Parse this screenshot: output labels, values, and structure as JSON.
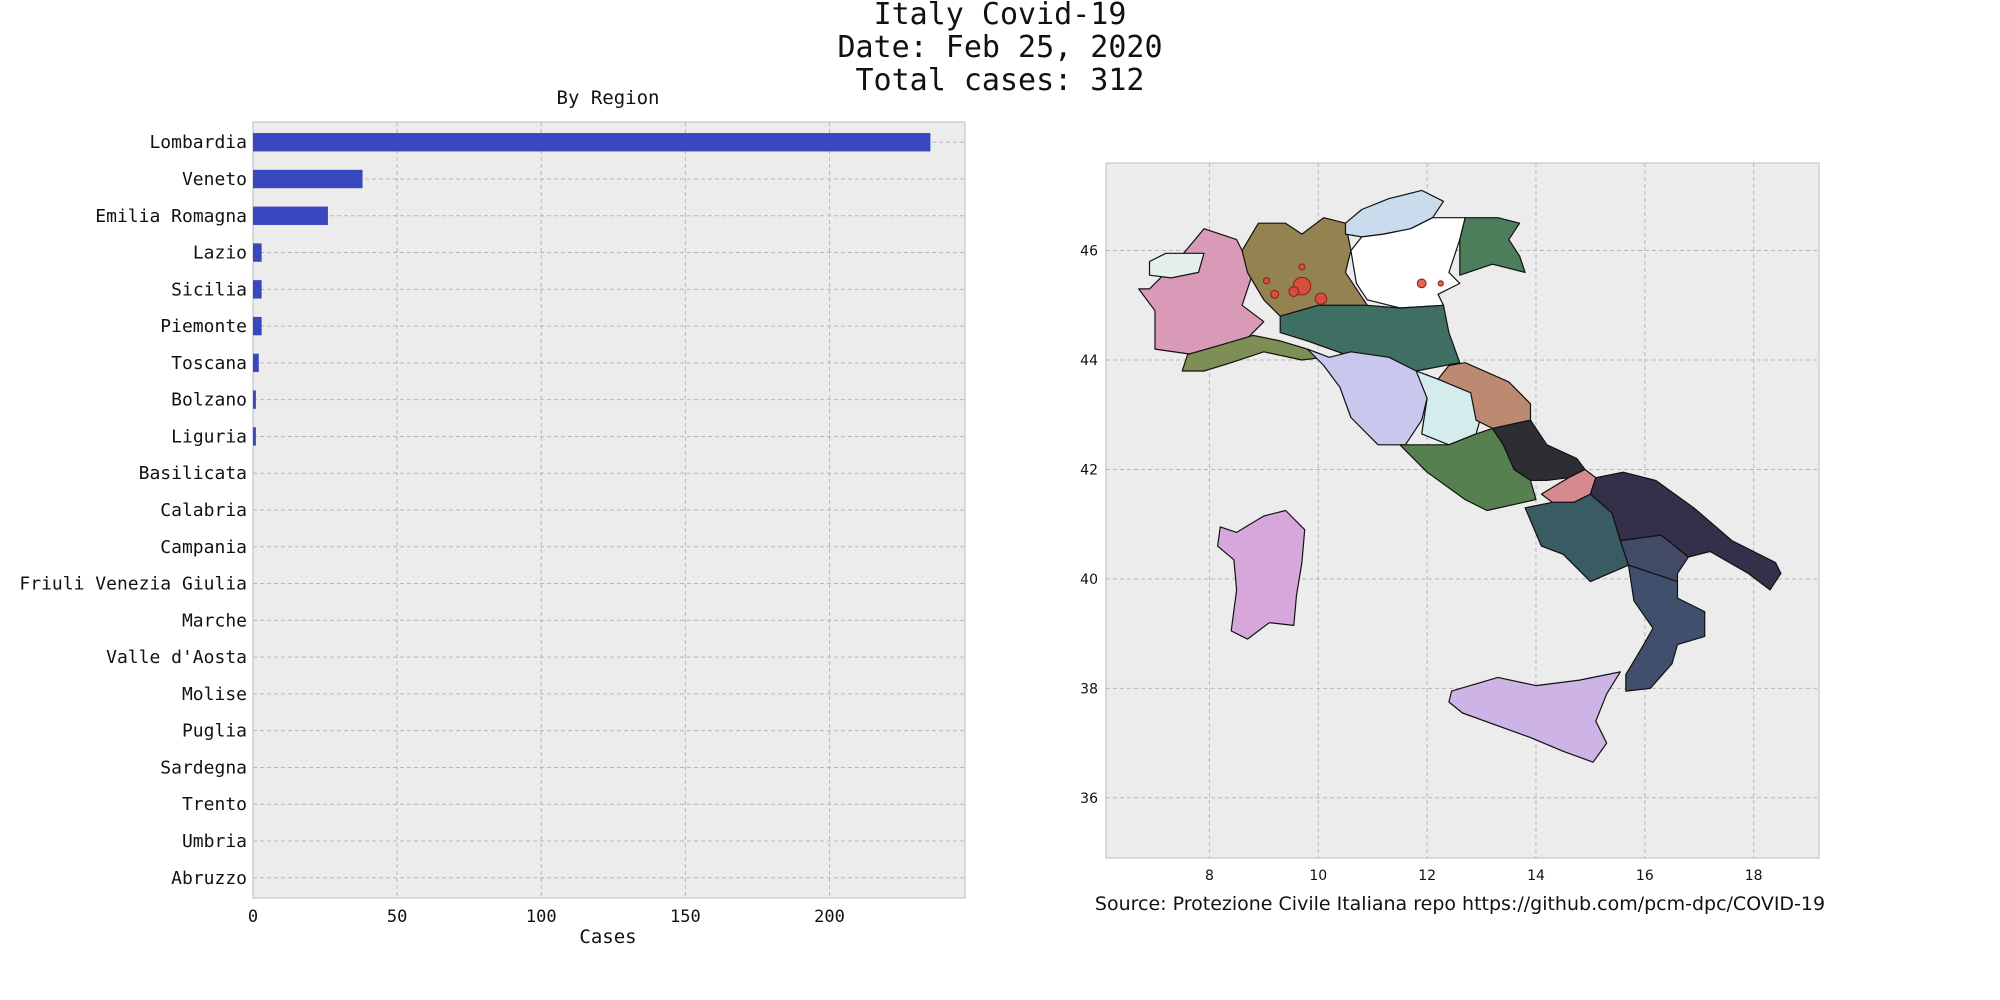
{
  "figure": {
    "title_lines": [
      "Italy Covid-19",
      "Date: Feb 25, 2020",
      "Total cases: 312"
    ],
    "source_note": "Source: Protezione Civile Italiana repo https://github.com/pcm-dpc/COVID-19"
  },
  "chart_data": [
    {
      "type": "bar",
      "orientation": "horizontal",
      "title": "By Region",
      "xlabel": "Cases",
      "ylabel": "",
      "xlim": [
        0,
        247
      ],
      "xticks": [
        0,
        50,
        100,
        150,
        200
      ],
      "grid": true,
      "bar_color": "#3a48c0",
      "background": "#ececec",
      "categories": [
        "Lombardia",
        "Veneto",
        "Emilia Romagna",
        "Lazio",
        "Sicilia",
        "Piemonte",
        "Toscana",
        "Bolzano",
        "Liguria",
        "Basilicata",
        "Calabria",
        "Campania",
        "Friuli Venezia Giulia",
        "Marche",
        "Valle d'Aosta",
        "Molise",
        "Puglia",
        "Sardegna",
        "Trento",
        "Umbria",
        "Abruzzo"
      ],
      "values": [
        235,
        38,
        26,
        3,
        3,
        3,
        2,
        1,
        1,
        0,
        0,
        0,
        0,
        0,
        0,
        0,
        0,
        0,
        0,
        0,
        0
      ]
    },
    {
      "type": "map",
      "xlim": [
        6.1,
        19.2
      ],
      "ylim": [
        34.9,
        47.6
      ],
      "xticks": [
        8,
        10,
        12,
        14,
        16,
        18
      ],
      "yticks": [
        36,
        38,
        40,
        42,
        44,
        46
      ],
      "grid": true,
      "background": "#ececec",
      "regions": [
        {
          "color": "#d99ab8",
          "points": [
            [
              6.9,
              45.3
            ],
            [
              7.4,
              45.8
            ],
            [
              7.9,
              46.4
            ],
            [
              8.5,
              46.2
            ],
            [
              8.8,
              45.6
            ],
            [
              8.6,
              45.0
            ],
            [
              9.0,
              44.7
            ],
            [
              8.6,
              44.3
            ],
            [
              7.7,
              44.1
            ],
            [
              7.0,
              44.2
            ],
            [
              7.0,
              44.9
            ],
            [
              6.7,
              45.3
            ]
          ]
        },
        {
          "color": "#e2efea",
          "points": [
            [
              6.9,
              45.8
            ],
            [
              7.2,
              45.95
            ],
            [
              7.9,
              45.95
            ],
            [
              7.8,
              45.6
            ],
            [
              7.3,
              45.5
            ],
            [
              6.9,
              45.55
            ]
          ]
        },
        {
          "color": "#948250",
          "points": [
            [
              8.6,
              46.0
            ],
            [
              8.9,
              46.5
            ],
            [
              9.4,
              46.5
            ],
            [
              9.7,
              46.3
            ],
            [
              10.1,
              46.6
            ],
            [
              10.5,
              46.5
            ],
            [
              10.6,
              46.0
            ],
            [
              10.5,
              45.6
            ],
            [
              10.7,
              45.3
            ],
            [
              10.9,
              45.0
            ],
            [
              10.0,
              45.0
            ],
            [
              9.3,
              44.8
            ],
            [
              9.0,
              45.1
            ],
            [
              8.7,
              45.6
            ]
          ]
        },
        {
          "color": "#7d8f55",
          "points": [
            [
              7.6,
              44.1
            ],
            [
              8.3,
              44.3
            ],
            [
              8.8,
              44.45
            ],
            [
              9.3,
              44.35
            ],
            [
              9.8,
              44.2
            ],
            [
              10.1,
              44.05
            ],
            [
              9.7,
              44.0
            ],
            [
              9.0,
              44.15
            ],
            [
              8.4,
              43.95
            ],
            [
              7.9,
              43.8
            ],
            [
              7.5,
              43.8
            ]
          ]
        },
        {
          "color": "#c9dbec",
          "points": [
            [
              10.5,
              46.5
            ],
            [
              10.8,
              46.75
            ],
            [
              11.3,
              46.95
            ],
            [
              11.9,
              47.1
            ],
            [
              12.3,
              46.9
            ],
            [
              12.1,
              46.6
            ],
            [
              11.7,
              46.4
            ],
            [
              11.2,
              46.3
            ],
            [
              10.8,
              46.25
            ],
            [
              10.5,
              46.3
            ]
          ]
        },
        {
          "color": "#ffffff",
          "points": [
            [
              10.6,
              46.0
            ],
            [
              10.8,
              46.25
            ],
            [
              11.2,
              46.3
            ],
            [
              11.7,
              46.4
            ],
            [
              12.1,
              46.6
            ],
            [
              12.7,
              46.6
            ],
            [
              12.6,
              46.2
            ],
            [
              12.4,
              45.6
            ],
            [
              12.6,
              45.4
            ],
            [
              12.2,
              45.2
            ],
            [
              12.3,
              45.0
            ],
            [
              11.5,
              44.95
            ],
            [
              10.9,
              45.1
            ],
            [
              10.7,
              45.4
            ]
          ]
        },
        {
          "color": "#4c7e5c",
          "points": [
            [
              12.7,
              46.6
            ],
            [
              13.3,
              46.6
            ],
            [
              13.7,
              46.5
            ],
            [
              13.5,
              46.2
            ],
            [
              13.7,
              45.9
            ],
            [
              13.8,
              45.6
            ],
            [
              13.2,
              45.75
            ],
            [
              12.6,
              45.55
            ],
            [
              12.6,
              46.2
            ]
          ]
        },
        {
          "color": "#3f6e62",
          "points": [
            [
              9.3,
              44.8
            ],
            [
              10.0,
              45.0
            ],
            [
              10.9,
              45.0
            ],
            [
              11.5,
              44.95
            ],
            [
              12.3,
              45.0
            ],
            [
              12.4,
              44.5
            ],
            [
              12.6,
              43.95
            ],
            [
              11.8,
              43.8
            ],
            [
              11.3,
              44.0
            ],
            [
              10.5,
              44.1
            ],
            [
              9.8,
              44.35
            ],
            [
              9.3,
              44.5
            ]
          ]
        },
        {
          "color": "#c8c8ee",
          "points": [
            [
              9.8,
              44.2
            ],
            [
              10.2,
              44.05
            ],
            [
              10.6,
              44.15
            ],
            [
              11.3,
              44.05
            ],
            [
              11.8,
              43.8
            ],
            [
              12.2,
              43.65
            ],
            [
              12.0,
              43.3
            ],
            [
              11.9,
              42.9
            ],
            [
              11.6,
              42.45
            ],
            [
              11.1,
              42.45
            ],
            [
              10.6,
              42.95
            ],
            [
              10.4,
              43.5
            ],
            [
              10.1,
              43.9
            ]
          ]
        },
        {
          "color": "#d5ecec",
          "points": [
            [
              11.8,
              43.8
            ],
            [
              12.2,
              43.65
            ],
            [
              12.8,
              43.45
            ],
            [
              13.0,
              43.0
            ],
            [
              12.9,
              42.65
            ],
            [
              12.4,
              42.45
            ],
            [
              11.9,
              42.65
            ],
            [
              12.0,
              43.3
            ]
          ]
        },
        {
          "color": "#bb8a70",
          "points": [
            [
              12.4,
              43.9
            ],
            [
              12.7,
              43.95
            ],
            [
              13.5,
              43.6
            ],
            [
              13.9,
              43.2
            ],
            [
              13.9,
              42.9
            ],
            [
              13.2,
              42.75
            ],
            [
              12.9,
              42.9
            ],
            [
              12.8,
              43.4
            ],
            [
              12.2,
              43.65
            ]
          ]
        },
        {
          "color": "#568050",
          "points": [
            [
              11.5,
              42.45
            ],
            [
              12.4,
              42.45
            ],
            [
              12.9,
              42.65
            ],
            [
              13.2,
              42.75
            ],
            [
              13.4,
              42.45
            ],
            [
              13.6,
              42.0
            ],
            [
              13.9,
              41.8
            ],
            [
              14.0,
              41.45
            ],
            [
              13.1,
              41.25
            ],
            [
              12.7,
              41.45
            ],
            [
              12.0,
              41.95
            ]
          ]
        },
        {
          "color": "#2e2d34",
          "points": [
            [
              13.2,
              42.75
            ],
            [
              13.9,
              42.9
            ],
            [
              14.2,
              42.45
            ],
            [
              14.75,
              42.2
            ],
            [
              14.9,
              42.0
            ],
            [
              14.6,
              41.85
            ],
            [
              14.2,
              41.8
            ],
            [
              13.9,
              41.8
            ],
            [
              13.6,
              42.0
            ],
            [
              13.4,
              42.45
            ]
          ]
        },
        {
          "color": "#d6898f",
          "points": [
            [
              14.1,
              41.55
            ],
            [
              14.6,
              41.85
            ],
            [
              14.9,
              42.0
            ],
            [
              15.1,
              41.85
            ],
            [
              15.0,
              41.55
            ],
            [
              14.7,
              41.4
            ],
            [
              14.3,
              41.4
            ]
          ]
        },
        {
          "color": "#3a5a64",
          "points": [
            [
              13.8,
              41.3
            ],
            [
              14.3,
              41.4
            ],
            [
              14.7,
              41.4
            ],
            [
              15.0,
              41.55
            ],
            [
              15.4,
              41.2
            ],
            [
              15.55,
              40.7
            ],
            [
              15.7,
              40.25
            ],
            [
              15.0,
              39.95
            ],
            [
              14.5,
              40.45
            ],
            [
              14.1,
              40.6
            ]
          ]
        },
        {
          "color": "#34304a",
          "points": [
            [
              15.1,
              41.85
            ],
            [
              15.6,
              41.95
            ],
            [
              16.2,
              41.8
            ],
            [
              16.9,
              41.3
            ],
            [
              17.6,
              40.7
            ],
            [
              18.4,
              40.3
            ],
            [
              18.5,
              40.1
            ],
            [
              18.3,
              39.8
            ],
            [
              17.9,
              40.1
            ],
            [
              17.2,
              40.5
            ],
            [
              16.8,
              40.4
            ],
            [
              16.3,
              40.8
            ],
            [
              15.55,
              40.7
            ],
            [
              15.4,
              41.2
            ],
            [
              15.0,
              41.55
            ]
          ]
        },
        {
          "color": "#414b65",
          "points": [
            [
              15.55,
              40.7
            ],
            [
              16.3,
              40.8
            ],
            [
              16.8,
              40.4
            ],
            [
              16.6,
              40.1
            ],
            [
              16.6,
              39.95
            ],
            [
              15.7,
              40.25
            ]
          ]
        },
        {
          "color": "#40506c",
          "points": [
            [
              15.7,
              40.25
            ],
            [
              16.6,
              39.95
            ],
            [
              16.6,
              39.65
            ],
            [
              17.1,
              39.4
            ],
            [
              17.1,
              38.95
            ],
            [
              16.6,
              38.8
            ],
            [
              16.5,
              38.45
            ],
            [
              16.1,
              38.0
            ],
            [
              15.65,
              37.95
            ],
            [
              15.65,
              38.25
            ],
            [
              15.95,
              38.75
            ],
            [
              16.15,
              39.1
            ],
            [
              15.8,
              39.6
            ]
          ]
        },
        {
          "color": "#cdb3e6",
          "points": [
            [
              12.45,
              37.95
            ],
            [
              13.3,
              38.2
            ],
            [
              14.0,
              38.05
            ],
            [
              14.8,
              38.15
            ],
            [
              15.55,
              38.3
            ],
            [
              15.3,
              37.9
            ],
            [
              15.1,
              37.4
            ],
            [
              15.3,
              37.0
            ],
            [
              15.05,
              36.65
            ],
            [
              14.5,
              36.85
            ],
            [
              13.9,
              37.1
            ],
            [
              12.65,
              37.55
            ],
            [
              12.4,
              37.75
            ]
          ]
        },
        {
          "color": "#d7a6db",
          "points": [
            [
              8.2,
              40.95
            ],
            [
              8.5,
              40.85
            ],
            [
              9.0,
              41.15
            ],
            [
              9.4,
              41.25
            ],
            [
              9.75,
              40.9
            ],
            [
              9.7,
              40.3
            ],
            [
              9.6,
              39.7
            ],
            [
              9.55,
              39.15
            ],
            [
              9.1,
              39.2
            ],
            [
              8.7,
              38.9
            ],
            [
              8.4,
              39.05
            ],
            [
              8.5,
              39.8
            ],
            [
              8.45,
              40.35
            ],
            [
              8.15,
              40.6
            ]
          ]
        }
      ],
      "markers": [
        {
          "lon": 9.7,
          "lat": 45.35,
          "size": 4
        },
        {
          "lon": 9.55,
          "lat": 45.25,
          "size": 2.2
        },
        {
          "lon": 10.05,
          "lat": 45.12,
          "size": 2.6
        },
        {
          "lon": 9.2,
          "lat": 45.2,
          "size": 1.8
        },
        {
          "lon": 9.05,
          "lat": 45.45,
          "size": 1.4
        },
        {
          "lon": 9.7,
          "lat": 45.7,
          "size": 1.4
        },
        {
          "lon": 11.9,
          "lat": 45.4,
          "size": 2
        },
        {
          "lon": 12.25,
          "lat": 45.4,
          "size": 1.2
        }
      ]
    }
  ]
}
